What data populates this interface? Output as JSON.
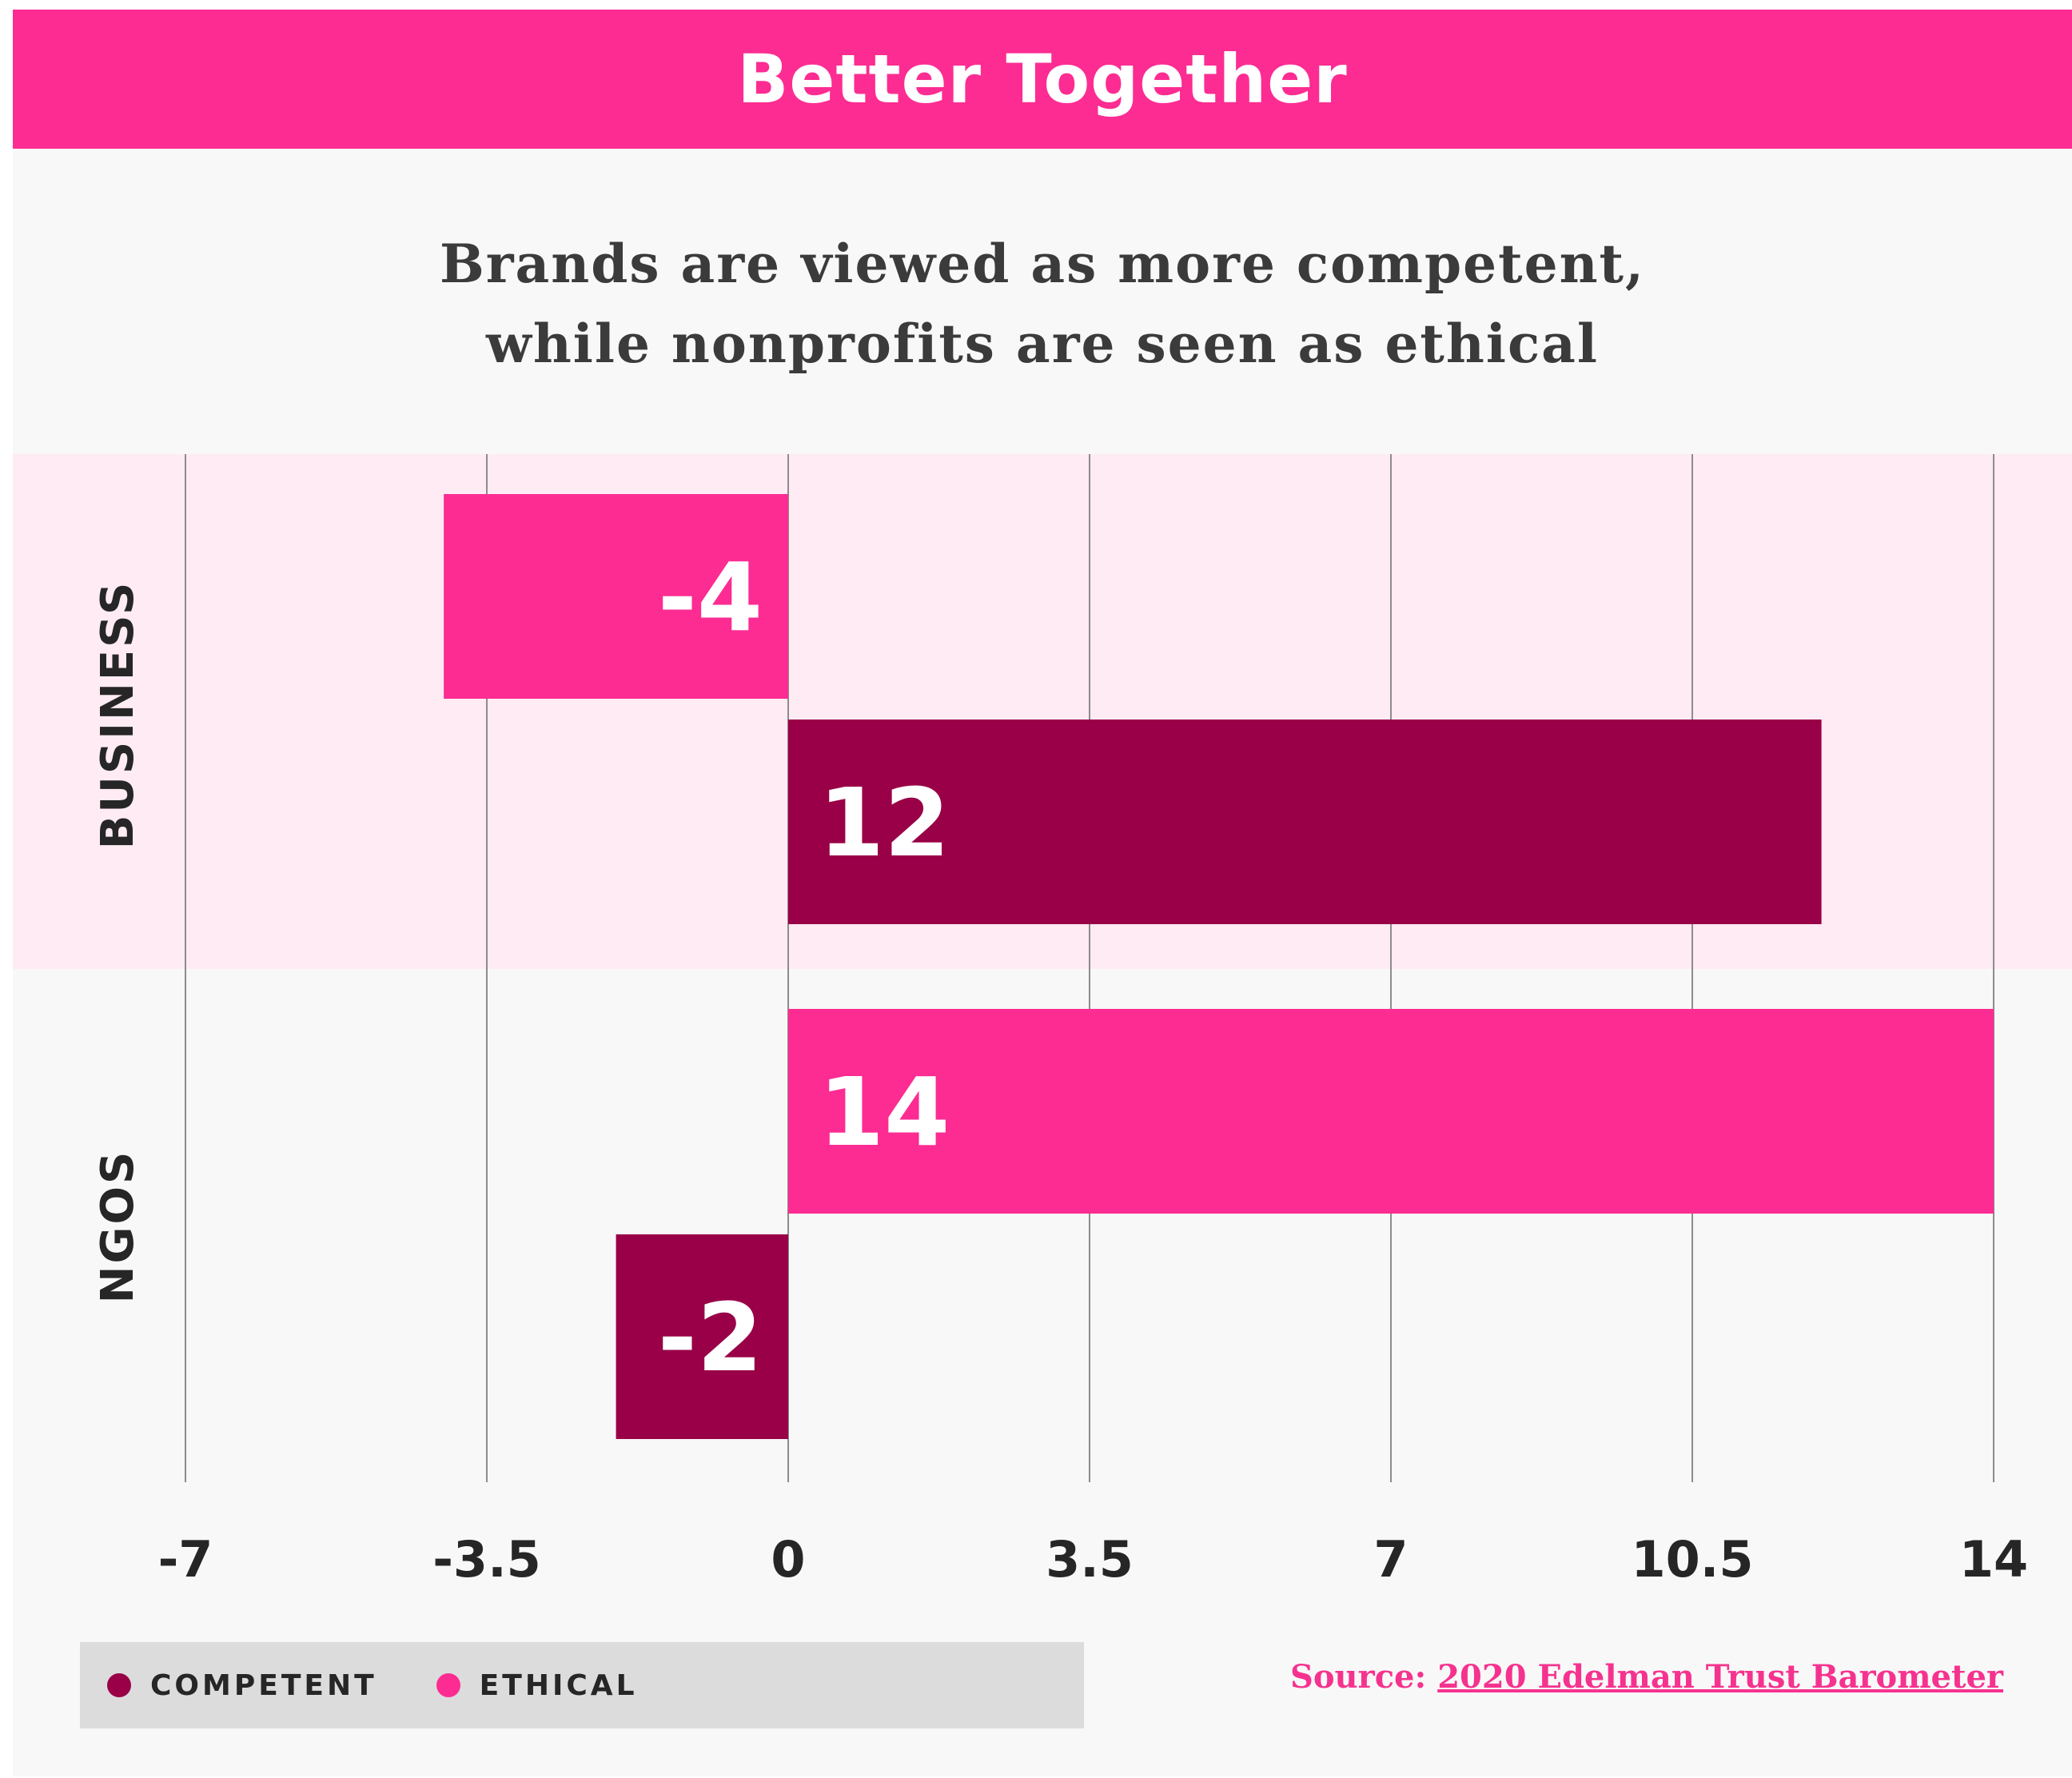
{
  "banner": {
    "title": "Better Together"
  },
  "subtitle": {
    "line1": "Brands are viewed as more competent,",
    "line2": "while nonprofits are seen as ethical"
  },
  "chart_data": {
    "type": "bar",
    "orientation": "horizontal",
    "categories": [
      "BUSINESS",
      "NGOS"
    ],
    "series": [
      {
        "name": "ETHICAL",
        "color": "#fd2c92",
        "values": [
          -4,
          14
        ]
      },
      {
        "name": "COMPETENT",
        "color": "#990047",
        "values": [
          12,
          -2
        ]
      }
    ],
    "xlim": [
      -7,
      14
    ],
    "ticks": [
      -7,
      -3.5,
      0,
      3.5,
      7,
      10.5,
      14
    ],
    "tick_labels": [
      "-7",
      "-3.5",
      "0",
      "3.5",
      "7",
      "10.5",
      "14"
    ],
    "grid": true,
    "highlight_band": {
      "category": "BUSINESS",
      "color": "#ffebf4"
    },
    "legend_position": "bottom-left"
  },
  "legend": {
    "items": [
      {
        "label": "COMPETENT",
        "color": "#990047"
      },
      {
        "label": "ETHICAL",
        "color": "#fd2c92"
      }
    ]
  },
  "source": {
    "prefix": "Source:",
    "link_text": "2020 Edelman Trust Barometer"
  },
  "colors": {
    "accent": "#fd2c92",
    "dark": "#990047",
    "background": "#f8f8f8",
    "band": "#ffebf4"
  }
}
